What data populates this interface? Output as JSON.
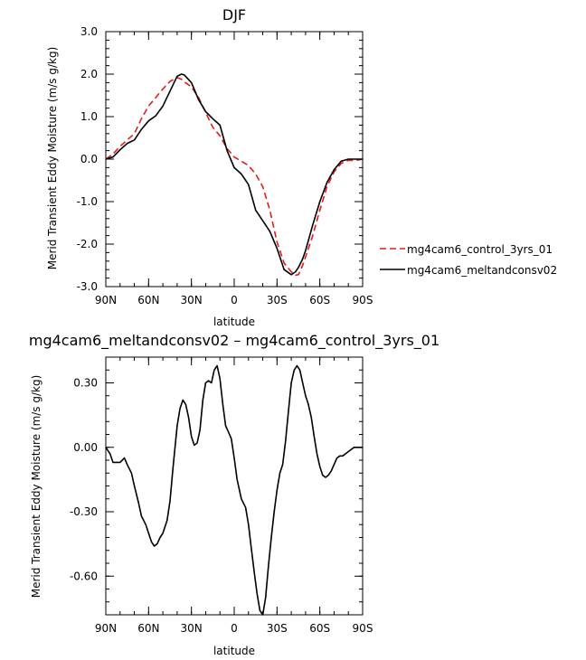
{
  "chart_data": [
    {
      "type": "line",
      "title": "DJF",
      "xlabel": "latitude",
      "ylabel": "Merid Transient Eddy Moisture  (m/s g/kg)",
      "xlim": [
        90,
        -90
      ],
      "ylim": [
        -3.0,
        3.0
      ],
      "x_ticks": [
        90,
        60,
        30,
        0,
        -30,
        -60,
        -90
      ],
      "x_tick_labels": [
        "90N",
        "60N",
        "30N",
        "0",
        "30S",
        "60S",
        "90S"
      ],
      "y_ticks": [
        -3.0,
        -2.0,
        -1.0,
        0.0,
        1.0,
        2.0,
        3.0
      ],
      "y_tick_labels": [
        "-3.0",
        "-2.0",
        "-1.0",
        "0.0",
        "1.0",
        "2.0",
        "3.0"
      ],
      "grid": false,
      "legend_position": "right",
      "x": [
        90,
        85,
        80,
        75,
        70,
        65,
        60,
        55,
        50,
        45,
        40,
        37,
        35,
        30,
        25,
        20,
        15,
        10,
        5,
        0,
        -5,
        -10,
        -15,
        -20,
        -25,
        -30,
        -35,
        -40,
        -43,
        -45,
        -48,
        -50,
        -55,
        -60,
        -65,
        -70,
        -75,
        -80,
        -85,
        -90
      ],
      "series": [
        {
          "name": "mg4cam6_control_3yrs_01",
          "color": "#e41a1c",
          "dash": "dashed",
          "values": [
            0.0,
            0.12,
            0.3,
            0.45,
            0.6,
            0.95,
            1.25,
            1.45,
            1.65,
            1.83,
            1.92,
            1.88,
            1.82,
            1.7,
            1.45,
            1.1,
            0.75,
            0.55,
            0.25,
            0.05,
            -0.05,
            -0.15,
            -0.35,
            -0.65,
            -1.2,
            -1.95,
            -2.45,
            -2.65,
            -2.73,
            -2.72,
            -2.5,
            -2.3,
            -1.8,
            -1.2,
            -0.65,
            -0.3,
            -0.1,
            -0.03,
            -0.03,
            0.0
          ]
        },
        {
          "name": "mg4cam6_meltandconsv02",
          "color": "#000000",
          "dash": "solid",
          "values": [
            0.0,
            0.05,
            0.22,
            0.37,
            0.45,
            0.7,
            0.9,
            1.02,
            1.25,
            1.6,
            1.95,
            2.0,
            1.98,
            1.8,
            1.4,
            1.12,
            0.95,
            0.8,
            0.2,
            -0.2,
            -0.35,
            -0.6,
            -1.2,
            -1.45,
            -1.7,
            -2.1,
            -2.6,
            -2.72,
            -2.65,
            -2.55,
            -2.35,
            -2.15,
            -1.55,
            -1.0,
            -0.55,
            -0.25,
            -0.05,
            0.0,
            0.0,
            0.0
          ]
        }
      ]
    },
    {
      "type": "line",
      "title": "mg4cam6_meltandconsv02 – mg4cam6_control_3yrs_01",
      "xlabel": "latitude",
      "ylabel": "Merid Transient Eddy Moisture  (m/s g/kg)",
      "xlim": [
        90,
        -90
      ],
      "ylim": [
        -0.78,
        0.42
      ],
      "x_ticks": [
        90,
        60,
        30,
        0,
        -30,
        -60,
        -90
      ],
      "x_tick_labels": [
        "90N",
        "60N",
        "30N",
        "0",
        "30S",
        "60S",
        "90S"
      ],
      "y_ticks": [
        -0.6,
        -0.3,
        0.0,
        0.3
      ],
      "y_tick_labels": [
        "-0.60",
        "-0.30",
        "0.00",
        "0.30"
      ],
      "grid": false,
      "x": [
        90,
        87,
        85,
        82,
        80,
        77,
        75,
        72,
        70,
        67,
        65,
        62,
        60,
        58,
        56,
        54,
        52,
        50,
        47,
        45,
        43,
        40,
        38,
        36,
        34,
        32,
        30,
        28,
        26,
        24,
        22,
        20,
        18,
        16,
        14,
        12,
        10,
        8,
        6,
        4,
        2,
        0,
        -2,
        -5,
        -8,
        -10,
        -12,
        -14,
        -16,
        -18,
        -20,
        -22,
        -24,
        -26,
        -28,
        -30,
        -32,
        -34,
        -36,
        -38,
        -40,
        -42,
        -44,
        -46,
        -48,
        -50,
        -52,
        -54,
        -56,
        -58,
        -60,
        -62,
        -64,
        -66,
        -68,
        -70,
        -72,
        -74,
        -76,
        -78,
        -80,
        -82,
        -84,
        -86,
        -88,
        -90
      ],
      "series": [
        {
          "name": "",
          "color": "#000000",
          "dash": "solid",
          "values": [
            0.0,
            -0.03,
            -0.07,
            -0.07,
            -0.07,
            -0.05,
            -0.08,
            -0.12,
            -0.18,
            -0.26,
            -0.32,
            -0.36,
            -0.4,
            -0.44,
            -0.46,
            -0.45,
            -0.42,
            -0.4,
            -0.34,
            -0.25,
            -0.1,
            0.1,
            0.18,
            0.22,
            0.2,
            0.14,
            0.05,
            0.01,
            0.02,
            0.08,
            0.22,
            0.3,
            0.31,
            0.3,
            0.36,
            0.38,
            0.32,
            0.2,
            0.1,
            0.07,
            0.04,
            -0.05,
            -0.15,
            -0.24,
            -0.28,
            -0.36,
            -0.47,
            -0.58,
            -0.68,
            -0.76,
            -0.78,
            -0.7,
            -0.55,
            -0.42,
            -0.3,
            -0.2,
            -0.12,
            -0.08,
            0.03,
            0.17,
            0.3,
            0.36,
            0.38,
            0.36,
            0.3,
            0.24,
            0.2,
            0.14,
            0.05,
            -0.03,
            -0.09,
            -0.13,
            -0.14,
            -0.13,
            -0.11,
            -0.08,
            -0.05,
            -0.04,
            -0.04,
            -0.03,
            -0.02,
            -0.01,
            0.0,
            0.0,
            0.0,
            0.0
          ]
        }
      ]
    }
  ]
}
